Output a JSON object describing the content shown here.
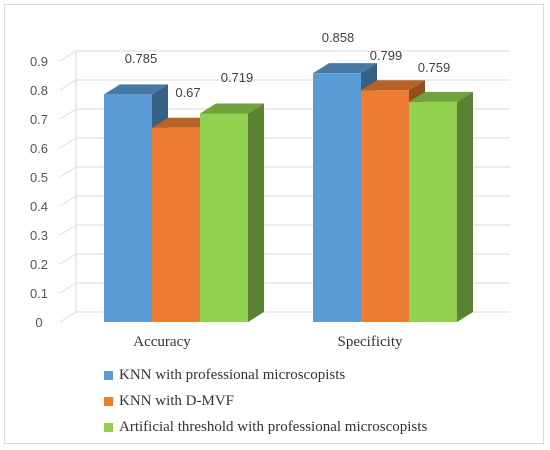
{
  "chart_data": {
    "type": "bar",
    "categories": [
      "Accuracy",
      "Specificity"
    ],
    "series": [
      {
        "name": "KNN with professional microscopists",
        "values": [
          0.785,
          0.858
        ],
        "color": "#5b9bd5"
      },
      {
        "name": "KNN with D-MVF",
        "values": [
          0.67,
          0.799
        ],
        "color": "#ed7d31"
      },
      {
        "name": "Artificial threshold with professional microscopists",
        "values": [
          0.719,
          0.759
        ],
        "color": "#92d050"
      }
    ],
    "data_labels": [
      [
        "0.785",
        "0.858"
      ],
      [
        "0.67",
        "0.799"
      ],
      [
        "0.719",
        "0.759"
      ]
    ],
    "yticks": [
      "0",
      "0.1",
      "0.2",
      "0.3",
      "0.4",
      "0.5",
      "0.6",
      "0.7",
      "0.8",
      "0.9"
    ],
    "ylim": [
      0,
      0.9
    ],
    "style": "3d-clustered-column",
    "grid": true,
    "legend_position": "bottom"
  }
}
